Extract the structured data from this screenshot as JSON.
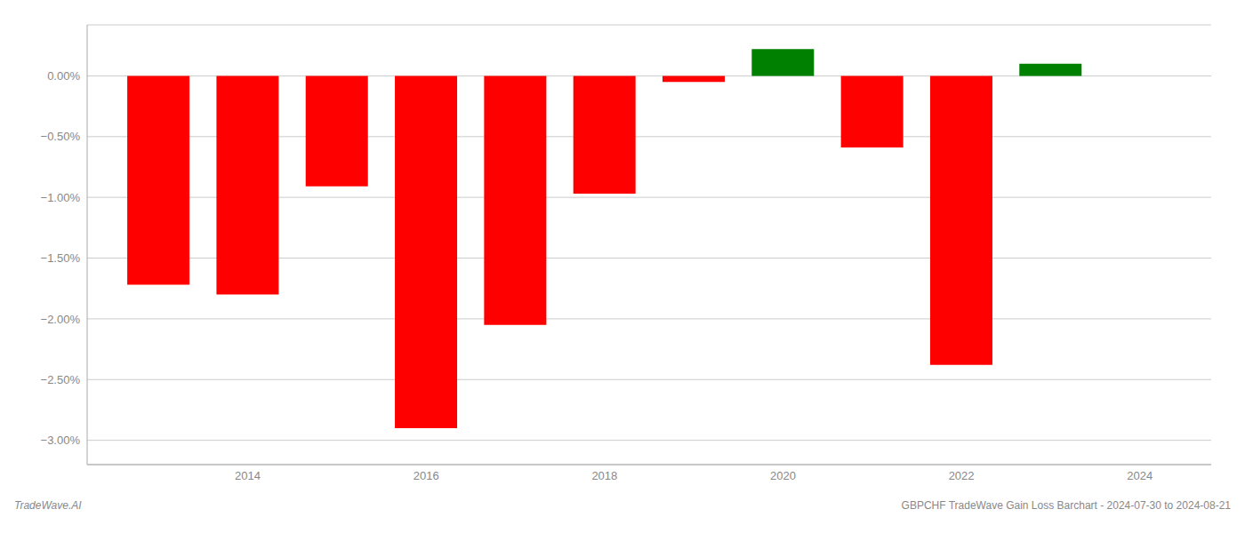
{
  "chart_data": {
    "type": "bar",
    "x": [
      2013,
      2014,
      2015,
      2016,
      2017,
      2018,
      2019,
      2020,
      2021,
      2022,
      2023
    ],
    "values": [
      -1.72,
      -1.8,
      -0.91,
      -2.9,
      -2.05,
      -0.97,
      -0.05,
      0.22,
      -0.59,
      -2.38,
      0.1
    ],
    "colors": [
      "#ff0000",
      "#ff0000",
      "#ff0000",
      "#ff0000",
      "#ff0000",
      "#ff0000",
      "#ff0000",
      "#008000",
      "#ff0000",
      "#ff0000",
      "#008000"
    ],
    "xlim": [
      2012.2,
      2024.8
    ],
    "xticks": [
      2014,
      2016,
      2018,
      2020,
      2022,
      2024
    ],
    "ylim": [
      -3.2,
      0.42
    ],
    "yticks": [
      {
        "value": 0.0,
        "label": "0.00%"
      },
      {
        "value": -0.5,
        "label": "−0.50%"
      },
      {
        "value": -1.0,
        "label": "−1.00%"
      },
      {
        "value": -1.5,
        "label": "−1.50%"
      },
      {
        "value": -2.0,
        "label": "−2.00%"
      },
      {
        "value": -2.5,
        "label": "−2.50%"
      },
      {
        "value": -3.0,
        "label": "−3.00%"
      }
    ],
    "grid": true,
    "annotations": [
      "TradeWave.AI",
      "GBPCHF TradeWave Gain Loss Barchart - 2024-07-30 to 2024-08-21"
    ]
  }
}
